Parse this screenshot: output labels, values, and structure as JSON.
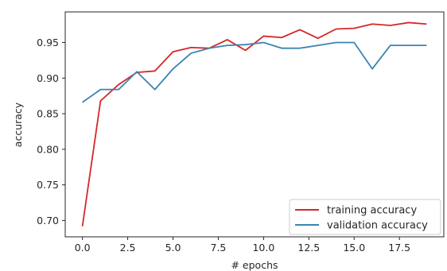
{
  "chart_data": {
    "type": "line",
    "xlabel": "# epochs",
    "ylabel": "accuracy",
    "xlim": [
      -0.95,
      19.95
    ],
    "ylim": [
      0.677,
      0.993
    ],
    "xticks": [
      0.0,
      2.5,
      5.0,
      7.5,
      10.0,
      12.5,
      15.0,
      17.5
    ],
    "xtick_labels": [
      "0.0",
      "2.5",
      "5.0",
      "7.5",
      "10.0",
      "12.5",
      "15.0",
      "17.5"
    ],
    "yticks": [
      0.7,
      0.75,
      0.8,
      0.85,
      0.9,
      0.95
    ],
    "ytick_labels": [
      "0.70",
      "0.75",
      "0.80",
      "0.85",
      "0.90",
      "0.95"
    ],
    "grid": false,
    "legend_position": "lower-right",
    "x": [
      0,
      1,
      2,
      3,
      4,
      5,
      6,
      7,
      8,
      9,
      10,
      11,
      12,
      13,
      14,
      15,
      16,
      17,
      18,
      19
    ],
    "series": [
      {
        "name": "training accuracy",
        "color": "#d62728",
        "values": [
          0.692,
          0.868,
          0.891,
          0.908,
          0.91,
          0.937,
          0.943,
          0.942,
          0.954,
          0.939,
          0.959,
          0.957,
          0.968,
          0.956,
          0.969,
          0.97,
          0.976,
          0.974,
          0.978,
          0.976
        ]
      },
      {
        "name": "validation accuracy",
        "color": "#3a84b2",
        "values": [
          0.866,
          0.884,
          0.884,
          0.909,
          0.884,
          0.913,
          0.935,
          0.942,
          0.946,
          0.947,
          0.95,
          0.942,
          0.942,
          0.946,
          0.95,
          0.95,
          0.913,
          0.946,
          0.946,
          0.946
        ]
      }
    ]
  }
}
